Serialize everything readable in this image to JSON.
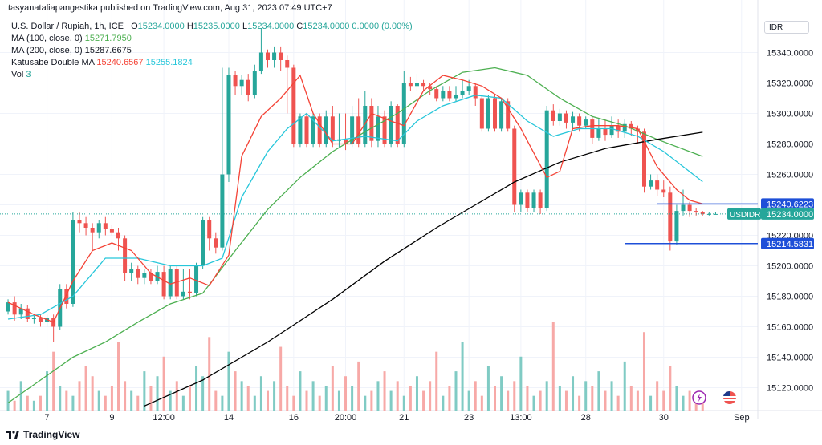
{
  "header": {
    "published_by": "tasyanataliapangestika published on TradingView.com, Aug 31, 2023 07:49 UTC+7"
  },
  "legend": {
    "symbol": "U.S. Dollar / Rupiah, 1h, ICE",
    "ohlc": {
      "o_label": "O",
      "o": "15234.0000",
      "h_label": "H",
      "h": "15235.0000",
      "l_label": "L",
      "l": "15234.0000",
      "c_label": "C",
      "c": "15234.0000",
      "change": "0.0000 (0.00%)"
    },
    "ma100_label": "MA (100, close, 0)",
    "ma100_value": "15271.7950",
    "ma200_label": "MA (200, close, 0)",
    "ma200_value": "15287.6675",
    "katusabe_label": "Katusabe Double MA",
    "katusabe_v1": "15240.6567",
    "katusabe_v2": "15255.1824",
    "vol_label": "Vol",
    "vol_value": "3"
  },
  "currency": "IDR",
  "footer": {
    "logo_text": "TradingView"
  },
  "colors": {
    "up": "#26a69a",
    "down": "#ef5350",
    "ma100": "#4caf50",
    "ma200": "#000000",
    "katusabe_fast": "#f44336",
    "katusabe_slow": "#26c6da",
    "level_line": "#1e4fd8",
    "vol_up": "#80cbc4",
    "vol_down": "#f7a9a7"
  },
  "chart_data": {
    "type": "candlestick",
    "y_range": [
      15105,
      15365
    ],
    "y_ticks": [
      "15120.0000",
      "15140.0000",
      "15160.0000",
      "15180.0000",
      "15200.0000",
      "15220.0000",
      "15240.0000",
      "15260.0000",
      "15280.0000",
      "15300.0000",
      "15320.0000",
      "15340.0000"
    ],
    "y_tick_values": [
      15120,
      15140,
      15160,
      15180,
      15200,
      15220,
      15240,
      15260,
      15280,
      15300,
      15320,
      15340
    ],
    "x_labels": [
      "7",
      "9",
      "12:00",
      "14",
      "16",
      "20:00",
      "21",
      "23",
      "13:00",
      "28",
      "30",
      "Sep"
    ],
    "x_label_index": [
      6,
      16,
      24,
      34,
      44,
      52,
      61,
      71,
      79,
      89,
      101,
      113
    ],
    "n_bars": 116,
    "ma200": [
      [
        21,
        15108
      ],
      [
        30,
        15125
      ],
      [
        40,
        15150
      ],
      [
        50,
        15178
      ],
      [
        58,
        15203
      ],
      [
        66,
        15225
      ],
      [
        72,
        15240
      ],
      [
        78,
        15255
      ],
      [
        85,
        15268
      ],
      [
        92,
        15277
      ],
      [
        100,
        15283
      ],
      [
        107,
        15287.7
      ]
    ],
    "ma100": [
      [
        0,
        15110
      ],
      [
        5,
        15125
      ],
      [
        10,
        15140
      ],
      [
        15,
        15150
      ],
      [
        20,
        15163
      ],
      [
        25,
        15175
      ],
      [
        30,
        15182
      ],
      [
        35,
        15210
      ],
      [
        40,
        15237
      ],
      [
        45,
        15258
      ],
      [
        50,
        15275
      ],
      [
        55,
        15288
      ],
      [
        60,
        15300
      ],
      [
        65,
        15315
      ],
      [
        70,
        15327
      ],
      [
        75,
        15330
      ],
      [
        80,
        15325
      ],
      [
        85,
        15310
      ],
      [
        90,
        15298
      ],
      [
        95,
        15292
      ],
      [
        100,
        15283
      ],
      [
        107,
        15271.8
      ]
    ],
    "katusabe_slow": [
      [
        0,
        15165
      ],
      [
        5,
        15168
      ],
      [
        10,
        15180
      ],
      [
        15,
        15205
      ],
      [
        20,
        15205
      ],
      [
        25,
        15200
      ],
      [
        30,
        15200
      ],
      [
        33,
        15205
      ],
      [
        36,
        15245
      ],
      [
        40,
        15275
      ],
      [
        43,
        15290
      ],
      [
        46,
        15300
      ],
      [
        50,
        15282
      ],
      [
        55,
        15285
      ],
      [
        60,
        15282
      ],
      [
        63,
        15295
      ],
      [
        67,
        15305
      ],
      [
        72,
        15312
      ],
      [
        76,
        15310
      ],
      [
        80,
        15295
      ],
      [
        84,
        15285
      ],
      [
        88,
        15290
      ],
      [
        93,
        15290
      ],
      [
        97,
        15285
      ],
      [
        101,
        15275
      ],
      [
        107,
        15255.2
      ]
    ],
    "katusabe_fast": [
      [
        0,
        15176
      ],
      [
        4,
        15168
      ],
      [
        7,
        15163
      ],
      [
        10,
        15190
      ],
      [
        13,
        15210
      ],
      [
        16,
        15215
      ],
      [
        19,
        15210
      ],
      [
        22,
        15195
      ],
      [
        25,
        15188
      ],
      [
        28,
        15192
      ],
      [
        31,
        15187
      ],
      [
        34,
        15207
      ],
      [
        36,
        15272
      ],
      [
        39,
        15298
      ],
      [
        42,
        15310
      ],
      [
        45,
        15325
      ],
      [
        47,
        15300
      ],
      [
        50,
        15280
      ],
      [
        53,
        15280
      ],
      [
        56,
        15300
      ],
      [
        59,
        15295
      ],
      [
        61,
        15292
      ],
      [
        64,
        15315
      ],
      [
        67,
        15325
      ],
      [
        70,
        15322
      ],
      [
        73,
        15318
      ],
      [
        76,
        15310
      ],
      [
        79,
        15290
      ],
      [
        83,
        15258
      ],
      [
        85,
        15262
      ],
      [
        87,
        15290
      ],
      [
        90,
        15292
      ],
      [
        94,
        15292
      ],
      [
        97,
        15290
      ],
      [
        100,
        15265
      ],
      [
        103,
        15250
      ],
      [
        105,
        15243
      ],
      [
        107,
        15240.7
      ]
    ],
    "levels": [
      {
        "value": 15240.6223,
        "label": "15240.6223",
        "from_index": 100
      },
      {
        "value": 15214.5831,
        "label": "15214.5831",
        "from_index": 95
      }
    ],
    "last_price": {
      "value": 15234,
      "label": "15234.0000",
      "symbol": "USDIDR"
    },
    "candles": [
      [
        15170,
        15176,
        15168,
        15178
      ],
      [
        15176,
        15168,
        15164,
        15180
      ],
      [
        15168,
        15172,
        15165,
        15175
      ],
      [
        15172,
        15165,
        15163,
        15174
      ],
      [
        15165,
        15166,
        15162,
        15168
      ],
      [
        15166,
        15163,
        15160,
        15168
      ],
      [
        15163,
        15166,
        15160,
        15168
      ],
      [
        15166,
        15160,
        15150,
        15168
      ],
      [
        15160,
        15185,
        15158,
        15188
      ],
      [
        15185,
        15175,
        15172,
        15188
      ],
      [
        15175,
        15230,
        15173,
        15235
      ],
      [
        15230,
        15228,
        15222,
        15235
      ],
      [
        15228,
        15225,
        15220,
        15232
      ],
      [
        15225,
        15222,
        15210,
        15228
      ],
      [
        15222,
        15228,
        15218,
        15230
      ],
      [
        15228,
        15224,
        15220,
        15232
      ],
      [
        15224,
        15222,
        15220,
        15227
      ],
      [
        15222,
        15218,
        15210,
        15225
      ],
      [
        15218,
        15195,
        15190,
        15220
      ],
      [
        15195,
        15198,
        15190,
        15202
      ],
      [
        15198,
        15192,
        15188,
        15200
      ],
      [
        15192,
        15195,
        15188,
        15198
      ],
      [
        15195,
        15190,
        15188,
        15198
      ],
      [
        15190,
        15196,
        15188,
        15200
      ],
      [
        15196,
        15180,
        15178,
        15200
      ],
      [
        15180,
        15198,
        15178,
        15200
      ],
      [
        15198,
        15180,
        15178,
        15200
      ],
      [
        15180,
        15183,
        15178,
        15198
      ],
      [
        15183,
        15182,
        15178,
        15198
      ],
      [
        15182,
        15200,
        15180,
        15202
      ],
      [
        15200,
        15230,
        15198,
        15232
      ],
      [
        15230,
        15218,
        15210,
        15232
      ],
      [
        15218,
        15212,
        15208,
        15222
      ],
      [
        15212,
        15260,
        15210,
        15330
      ],
      [
        15260,
        15325,
        15255,
        15330
      ],
      [
        15325,
        15318,
        15312,
        15328
      ],
      [
        15318,
        15322,
        15312,
        15325
      ],
      [
        15322,
        15312,
        15308,
        15326
      ],
      [
        15312,
        15328,
        15310,
        15332
      ],
      [
        15328,
        15340,
        15326,
        15356
      ],
      [
        15340,
        15335,
        15330,
        15342
      ],
      [
        15335,
        15340,
        15330,
        15344
      ],
      [
        15340,
        15335,
        15328,
        15344
      ],
      [
        15335,
        15330,
        15300,
        15338
      ],
      [
        15330,
        15280,
        15278,
        15332
      ],
      [
        15280,
        15298,
        15278,
        15300
      ],
      [
        15298,
        15280,
        15278,
        15300
      ],
      [
        15280,
        15298,
        15278,
        15300
      ],
      [
        15298,
        15280,
        15278,
        15300
      ],
      [
        15280,
        15298,
        15278,
        15302
      ],
      [
        15298,
        15282,
        15278,
        15305
      ],
      [
        15282,
        15283,
        15278,
        15300
      ],
      [
        15283,
        15280,
        15276,
        15300
      ],
      [
        15280,
        15298,
        15278,
        15305
      ],
      [
        15298,
        15280,
        15278,
        15310
      ],
      [
        15280,
        15305,
        15278,
        15315
      ],
      [
        15305,
        15282,
        15278,
        15310
      ],
      [
        15282,
        15298,
        15278,
        15305
      ],
      [
        15298,
        15280,
        15278,
        15302
      ],
      [
        15280,
        15305,
        15278,
        15308
      ],
      [
        15305,
        15280,
        15278,
        15306
      ],
      [
        15280,
        15320,
        15278,
        15328
      ],
      [
        15320,
        15318,
        15315,
        15324
      ],
      [
        15318,
        15320,
        15315,
        15326
      ],
      [
        15320,
        15318,
        15315,
        15322
      ],
      [
        15318,
        15316,
        15312,
        15320
      ],
      [
        15316,
        15310,
        15308,
        15318
      ],
      [
        15310,
        15315,
        15308,
        15318
      ],
      [
        15315,
        15310,
        15308,
        15318
      ],
      [
        15310,
        15312,
        15308,
        15318
      ],
      [
        15312,
        15315,
        15310,
        15322
      ],
      [
        15315,
        15318,
        15312,
        15322
      ],
      [
        15318,
        15310,
        15305,
        15320
      ],
      [
        15310,
        15290,
        15288,
        15312
      ],
      [
        15290,
        15310,
        15288,
        15312
      ],
      [
        15310,
        15290,
        15288,
        15312
      ],
      [
        15290,
        15308,
        15288,
        15310
      ],
      [
        15308,
        15290,
        15288,
        15310
      ],
      [
        15290,
        15240,
        15235,
        15292
      ],
      [
        15240,
        15248,
        15235,
        15250
      ],
      [
        15248,
        15238,
        15235,
        15250
      ],
      [
        15238,
        15248,
        15235,
        15250
      ],
      [
        15248,
        15238,
        15234,
        15250
      ],
      [
        15238,
        15302,
        15236,
        15305
      ],
      [
        15302,
        15295,
        15292,
        15306
      ],
      [
        15295,
        15300,
        15292,
        15303
      ],
      [
        15300,
        15294,
        15290,
        15302
      ],
      [
        15294,
        15298,
        15290,
        15301
      ],
      [
        15298,
        15292,
        15288,
        15300
      ],
      [
        15292,
        15296,
        15290,
        15298
      ],
      [
        15296,
        15284,
        15280,
        15298
      ],
      [
        15284,
        15290,
        15282,
        15296
      ],
      [
        15290,
        15286,
        15282,
        15296
      ],
      [
        15286,
        15292,
        15284,
        15298
      ],
      [
        15292,
        15288,
        15284,
        15296
      ],
      [
        15288,
        15293,
        15284,
        15296
      ],
      [
        15293,
        15290,
        15285,
        15295
      ],
      [
        15290,
        15288,
        15280,
        15292
      ],
      [
        15288,
        15252,
        15248,
        15290
      ],
      [
        15252,
        15256,
        15250,
        15260
      ],
      [
        15256,
        15250,
        15246,
        15260
      ],
      [
        15250,
        15248,
        15245,
        15256
      ],
      [
        15248,
        15216,
        15210,
        15252
      ],
      [
        15216,
        15236,
        15214,
        15240
      ],
      [
        15236,
        15240,
        15233,
        15250
      ],
      [
        15240,
        15236,
        15232,
        15242
      ],
      [
        15236,
        15235,
        15233,
        15238
      ],
      [
        15235,
        15234,
        15233,
        15236
      ],
      [
        15234,
        15234,
        15233,
        15235
      ],
      [
        15234,
        15234,
        15234,
        15235
      ]
    ],
    "volume": [
      4,
      2,
      6,
      3,
      2,
      3,
      8,
      12,
      5,
      4,
      3,
      6,
      9,
      7,
      4,
      3,
      5,
      14,
      6,
      4,
      3,
      8,
      5,
      7,
      11,
      4,
      6,
      3,
      5,
      9,
      7,
      15,
      4,
      3,
      12,
      8,
      6,
      5,
      3,
      7,
      4,
      6,
      13,
      5,
      3,
      8,
      4,
      6,
      3,
      5,
      9,
      4,
      7,
      5,
      10,
      3,
      4,
      6,
      8,
      4,
      6,
      3,
      5,
      7,
      4,
      6,
      12,
      3,
      5,
      8,
      14,
      4,
      6,
      3,
      9,
      5,
      7,
      4,
      6,
      11,
      5,
      3,
      4,
      6,
      18,
      5,
      4,
      7,
      3,
      6,
      5,
      8,
      4,
      6,
      3,
      10,
      5,
      4,
      16,
      3,
      6,
      4,
      9,
      5,
      3,
      4,
      2,
      3
    ]
  }
}
